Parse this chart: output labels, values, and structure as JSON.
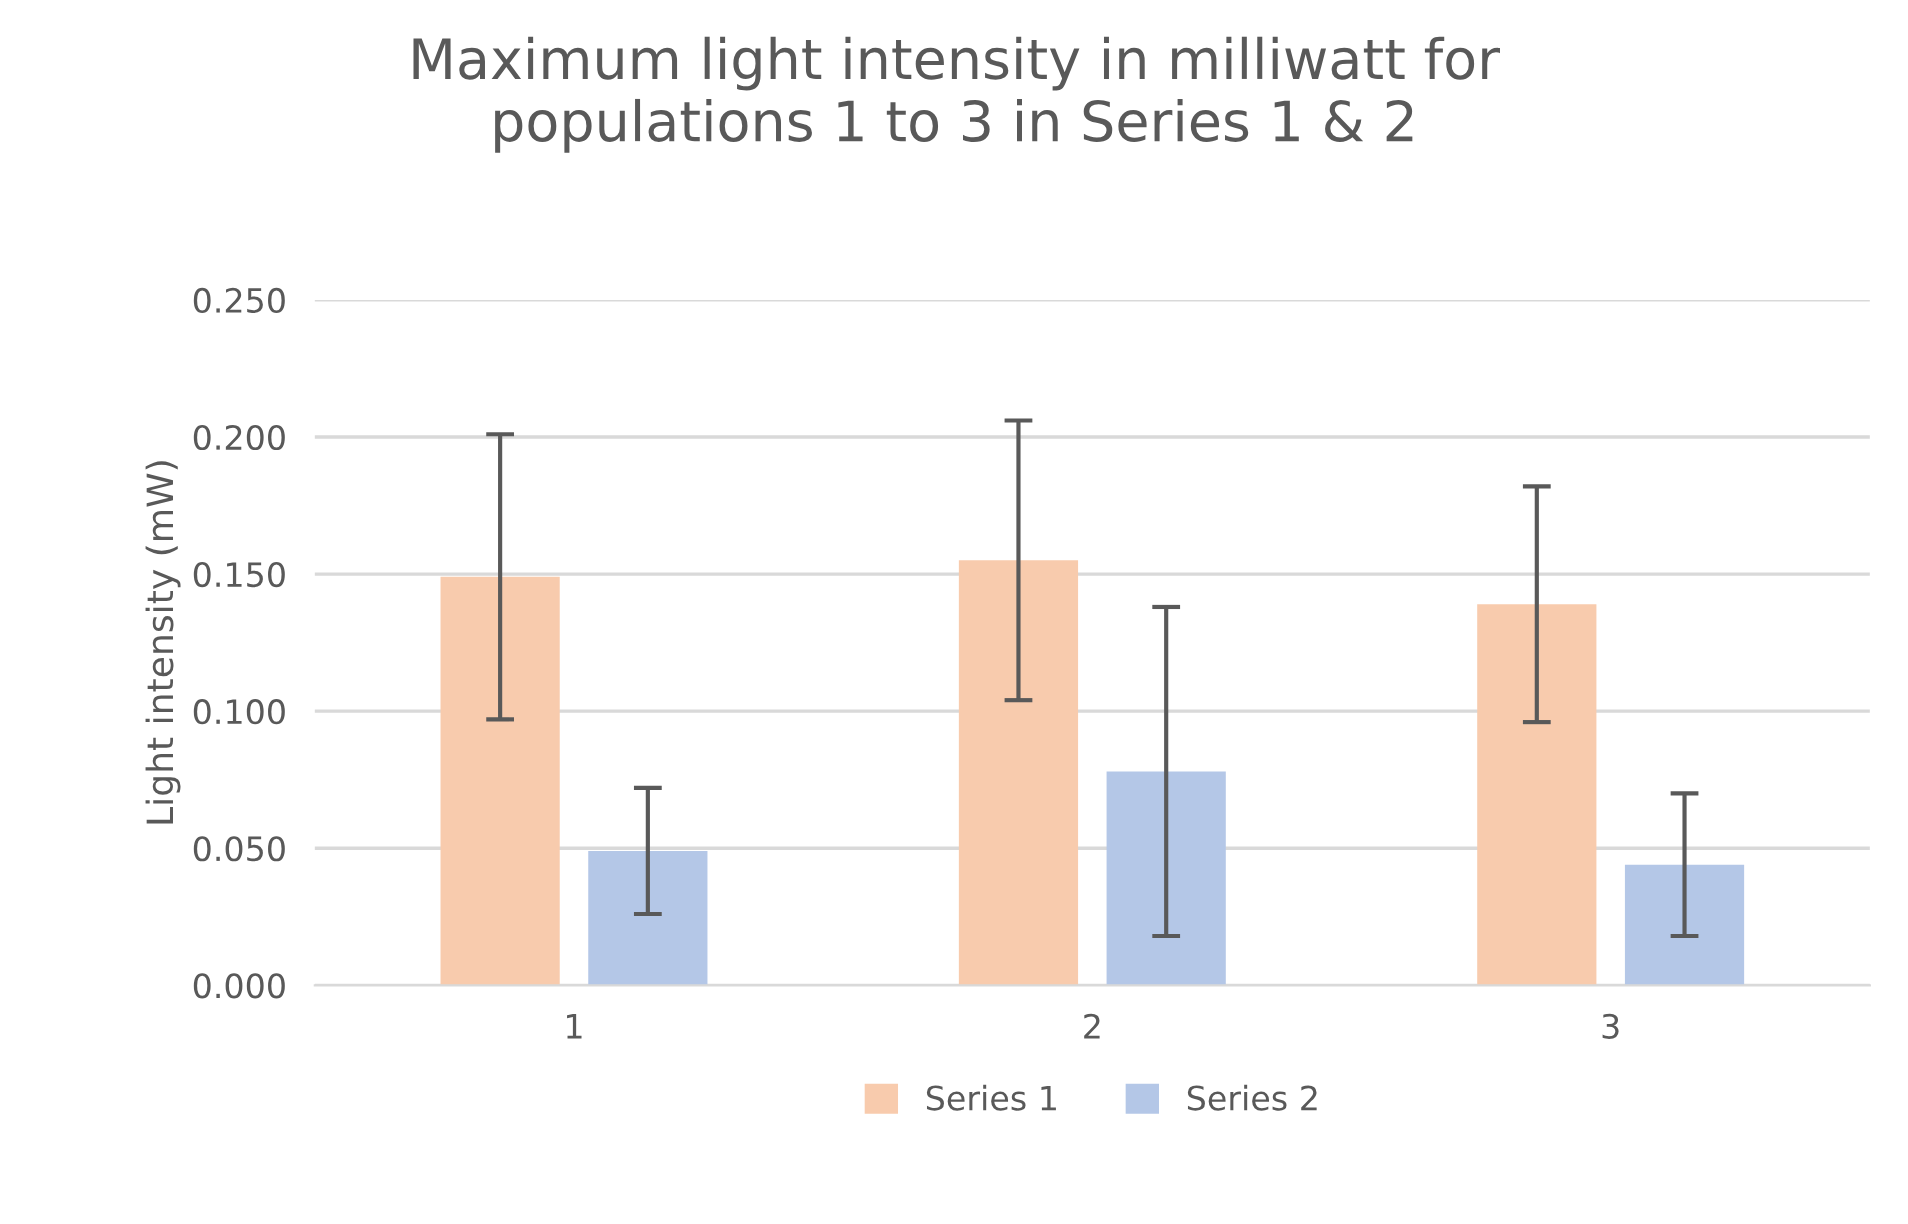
{
  "chart_data": {
    "type": "bar",
    "title": "Maximum light intensity in milliwatt for\npopulations 1 to 3 in Series 1 & 2",
    "ylabel": "Light intensity (mW)",
    "categories": [
      "1",
      "2",
      "3"
    ],
    "series": [
      {
        "name": "Series 1",
        "color": "#f8cbad",
        "values": [
          0.149,
          0.155,
          0.139
        ],
        "errors": [
          0.052,
          0.051,
          0.043
        ]
      },
      {
        "name": "Series 2",
        "color": "#b4c7e7",
        "values": [
          0.049,
          0.078,
          0.044
        ],
        "errors": [
          0.023,
          0.06,
          0.026
        ]
      }
    ],
    "ylim": [
      0,
      0.25
    ],
    "yticks": [
      {
        "value": 0,
        "label": "0.000"
      },
      {
        "value": 0.05,
        "label": "0.050"
      },
      {
        "value": 0.1,
        "label": "0.100"
      },
      {
        "value": 0.15,
        "label": "0.150"
      },
      {
        "value": 0.2,
        "label": "0.200"
      },
      {
        "value": 0.25,
        "label": "0.250"
      }
    ],
    "grid": "y",
    "legend": "bottom"
  }
}
